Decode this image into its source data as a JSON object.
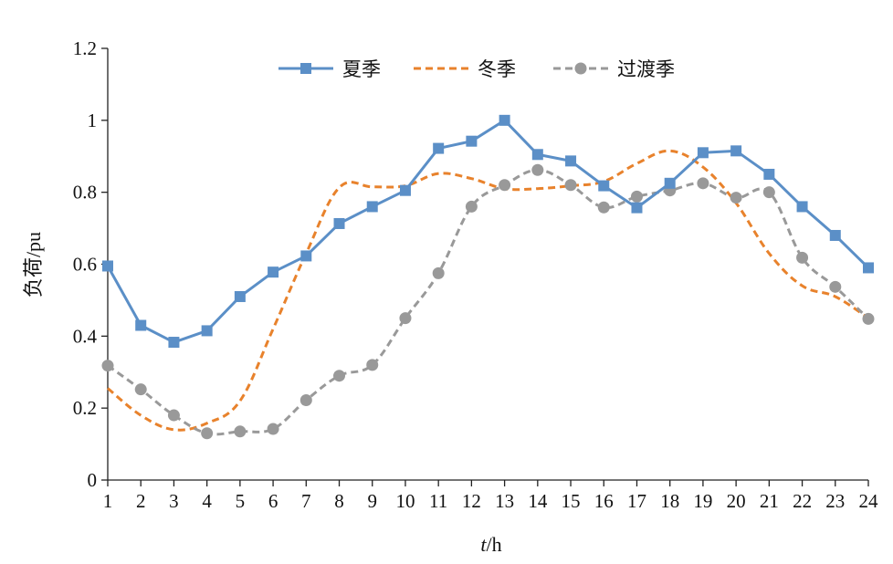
{
  "chart_data": {
    "type": "line",
    "title": "",
    "xlabel": "t/h",
    "xlabel_italic_part": "t",
    "xlabel_rest": "/h",
    "ylabel": "负荷/pu",
    "x": [
      1,
      2,
      3,
      4,
      5,
      6,
      7,
      8,
      9,
      10,
      11,
      12,
      13,
      14,
      15,
      16,
      17,
      18,
      19,
      20,
      21,
      22,
      23,
      24
    ],
    "x_tick_labels": [
      "1",
      "2",
      "3",
      "4",
      "5",
      "6",
      "7",
      "8",
      "9",
      "10",
      "11",
      "12",
      "13",
      "14",
      "15",
      "16",
      "17",
      "18",
      "19",
      "20",
      "21",
      "22",
      "23",
      "24"
    ],
    "y_ticks": [
      0,
      0.2,
      0.4,
      0.6,
      0.8,
      1,
      1.2
    ],
    "y_tick_labels": [
      "0",
      "0.2",
      "0.4",
      "0.6",
      "0.8",
      "1",
      "1.2"
    ],
    "xlim": [
      1,
      24
    ],
    "ylim": [
      0,
      1.2
    ],
    "grid": false,
    "legend_position": "top-center",
    "series": [
      {
        "name": "夏季",
        "color": "#5b8fc7",
        "style": "solid",
        "marker": "square",
        "values": [
          0.595,
          0.43,
          0.383,
          0.415,
          0.51,
          0.578,
          0.623,
          0.713,
          0.76,
          0.805,
          0.922,
          0.942,
          1.0,
          0.905,
          0.887,
          0.818,
          0.757,
          0.825,
          0.91,
          0.915,
          0.85,
          0.76,
          0.68,
          0.59
        ]
      },
      {
        "name": "冬季",
        "color": "#e8822c",
        "style": "dashed",
        "marker": "none",
        "values": [
          0.255,
          0.18,
          0.14,
          0.158,
          0.22,
          0.42,
          0.63,
          0.813,
          0.815,
          0.818,
          0.852,
          0.838,
          0.81,
          0.81,
          0.818,
          0.83,
          0.88,
          0.915,
          0.87,
          0.77,
          0.63,
          0.54,
          0.51,
          0.45
        ]
      },
      {
        "name": "过渡季",
        "color": "#999999",
        "style": "dashed",
        "marker": "circle",
        "values": [
          0.318,
          0.252,
          0.18,
          0.13,
          0.135,
          0.142,
          0.222,
          0.29,
          0.32,
          0.45,
          0.575,
          0.76,
          0.82,
          0.862,
          0.82,
          0.758,
          0.788,
          0.805,
          0.825,
          0.785,
          0.8,
          0.618,
          0.537,
          0.448
        ]
      }
    ]
  }
}
